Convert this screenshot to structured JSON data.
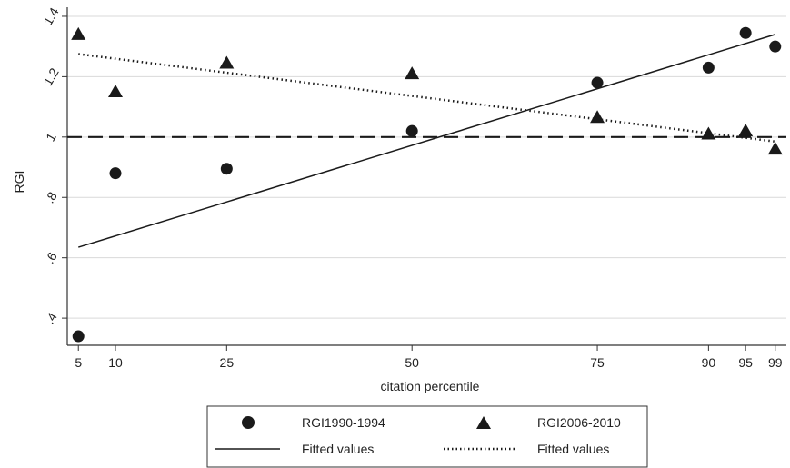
{
  "chart_data": {
    "type": "scatter",
    "xlabel": "citation percentile",
    "ylabel": "RGI",
    "x_ticks": [
      5,
      10,
      25,
      50,
      75,
      90,
      95,
      99
    ],
    "x_tick_labels": [
      "5",
      "10",
      "25",
      "50",
      "75",
      "90",
      "95",
      "99"
    ],
    "y_ticks": [
      0.4,
      0.6,
      0.8,
      1.0,
      1.2,
      1.4
    ],
    "y_tick_labels": [
      ".4",
      ".6",
      ".8",
      "1",
      "1.2",
      "1.4"
    ],
    "xlim": [
      3.5,
      100.5
    ],
    "ylim": [
      0.31,
      1.43
    ],
    "grid": true,
    "reference_line": {
      "y": 1.0,
      "style": "dashed"
    },
    "series": [
      {
        "name": "RGI1990-1994",
        "marker": "circle",
        "x": [
          5,
          10,
          25,
          50,
          75,
          90,
          95,
          99
        ],
        "y": [
          0.34,
          0.88,
          0.895,
          1.02,
          1.18,
          1.23,
          1.345,
          1.3
        ]
      },
      {
        "name": "RGI2006-2010",
        "marker": "triangle",
        "x": [
          5,
          10,
          25,
          50,
          75,
          90,
          95,
          99
        ],
        "y": [
          1.34,
          1.15,
          1.245,
          1.21,
          1.065,
          1.01,
          1.02,
          0.96
        ]
      }
    ],
    "fits": [
      {
        "name": "Fitted values",
        "style": "solid",
        "x": [
          5,
          99
        ],
        "y": [
          0.635,
          1.34
        ]
      },
      {
        "name": "Fitted values",
        "style": "dotted",
        "x": [
          5,
          99
        ],
        "y": [
          1.275,
          0.985
        ]
      }
    ],
    "legend": {
      "position": "bottom",
      "entries": [
        {
          "label": "RGI1990-1994",
          "symbol": "circle"
        },
        {
          "label": "RGI2006-2010",
          "symbol": "triangle"
        },
        {
          "label": "Fitted values",
          "symbol": "solid-line"
        },
        {
          "label": "Fitted values",
          "symbol": "dotted-line"
        }
      ]
    },
    "colors": {
      "marker": "#1a1a1a",
      "grid": "#d9d9d9",
      "axis": "#333333"
    }
  }
}
